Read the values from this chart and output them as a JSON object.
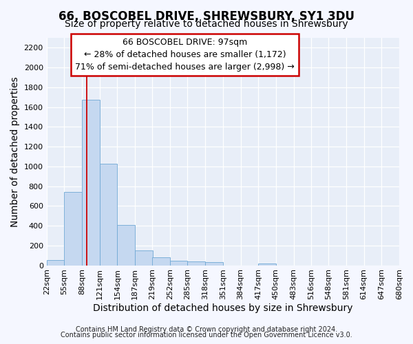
{
  "title1": "66, BOSCOBEL DRIVE, SHREWSBURY, SY1 3DU",
  "title2": "Size of property relative to detached houses in Shrewsbury",
  "xlabel": "Distribution of detached houses by size in Shrewsbury",
  "ylabel": "Number of detached properties",
  "footnote1": "Contains HM Land Registry data © Crown copyright and database right 2024.",
  "footnote2": "Contains public sector information licensed under the Open Government Licence v3.0.",
  "annotation_title": "66 BOSCOBEL DRIVE: 97sqm",
  "annotation_line1": "← 28% of detached houses are smaller (1,172)",
  "annotation_line2": "71% of semi-detached houses are larger (2,998) →",
  "property_size": 97,
  "bar_edges": [
    22,
    55,
    88,
    121,
    154,
    187,
    219,
    252,
    285,
    318,
    351,
    384,
    417,
    450,
    483,
    516,
    548,
    581,
    614,
    647,
    680
  ],
  "bar_heights": [
    50,
    740,
    1675,
    1030,
    405,
    150,
    80,
    48,
    42,
    30,
    0,
    0,
    20,
    0,
    0,
    0,
    0,
    0,
    0,
    0
  ],
  "bar_color": "#c5d8f0",
  "bar_edgecolor": "#6fa8d5",
  "vline_x": 97,
  "vline_color": "#cc0000",
  "annotation_box_color": "#cc0000",
  "ylim": [
    0,
    2300
  ],
  "yticks": [
    0,
    200,
    400,
    600,
    800,
    1000,
    1200,
    1400,
    1600,
    1800,
    2000,
    2200
  ],
  "bg_color": "#e8eef8",
  "fig_bg_color": "#f5f7ff",
  "grid_color": "#ffffff",
  "title_fontsize": 12,
  "subtitle_fontsize": 10,
  "axis_label_fontsize": 10,
  "tick_fontsize": 8,
  "annotation_fontsize": 9,
  "footnote_fontsize": 7
}
